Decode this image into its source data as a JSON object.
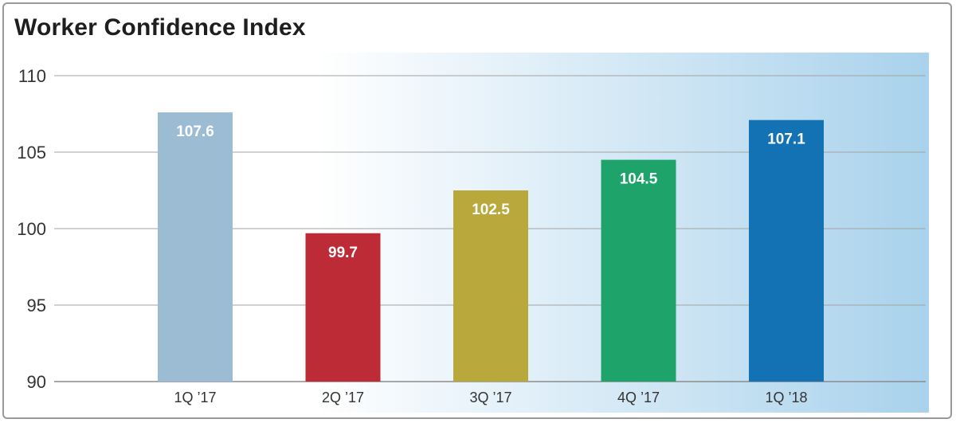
{
  "chart_data": {
    "type": "bar",
    "title": "Worker Confidence Index",
    "categories": [
      "1Q ’17",
      "2Q ’17",
      "3Q ’17",
      "4Q ’17",
      "1Q ’18"
    ],
    "values": [
      107.6,
      99.7,
      102.5,
      104.5,
      107.1
    ],
    "value_labels": [
      "107.6",
      "99.7",
      "102.5",
      "104.5",
      "107.1"
    ],
    "bar_colors": [
      "#9bbcd2",
      "#bd2b36",
      "#b9a93c",
      "#1ea46a",
      "#1272b3"
    ],
    "ylim": [
      90,
      110
    ],
    "yticks": [
      90,
      95,
      100,
      105,
      110
    ],
    "grid": true,
    "background_gradient": [
      "#ffffff",
      "#a9d2ec"
    ]
  }
}
